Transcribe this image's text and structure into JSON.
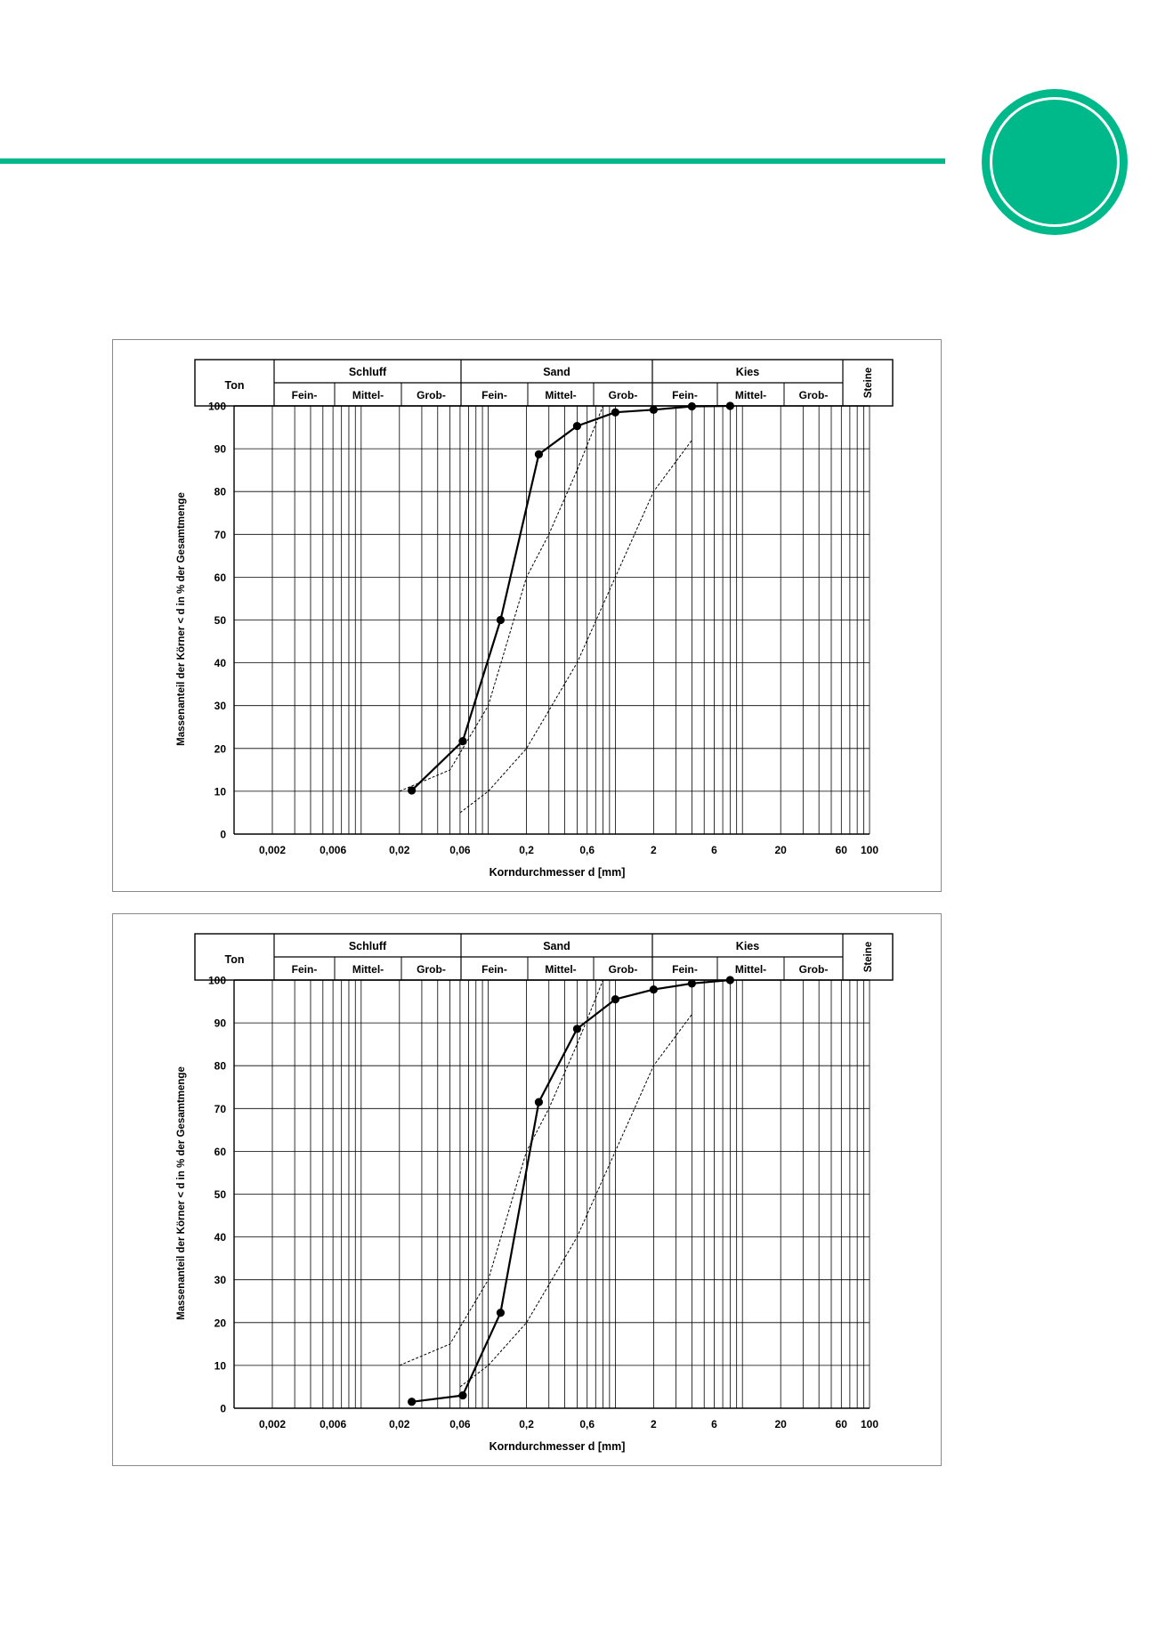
{
  "colors": {
    "accent": "#00b98a",
    "frame": "#8a8a8a",
    "ink": "#000000"
  },
  "header": {
    "badge_icon": "green-circle-badge"
  },
  "classification": {
    "groups": [
      "Ton",
      "Schluff",
      "Sand",
      "Kies",
      "Steine"
    ],
    "subgroups": [
      "Fein-",
      "Mittel-",
      "Grob-"
    ]
  },
  "axes": {
    "ylabel": "Massenanteil der Körner < d in % der Gesamtmenge",
    "xlabel": "Korndurchmesser d [mm]",
    "x_ticks": [
      {
        "v": 0.002,
        "t": "0,002"
      },
      {
        "v": 0.006,
        "t": "0,006"
      },
      {
        "v": 0.02,
        "t": "0,02"
      },
      {
        "v": 0.06,
        "t": "0,06"
      },
      {
        "v": 0.2,
        "t": "0,2"
      },
      {
        "v": 0.6,
        "t": "0,6"
      },
      {
        "v": 2,
        "t": "2"
      },
      {
        "v": 6,
        "t": "6"
      },
      {
        "v": 20,
        "t": "20"
      },
      {
        "v": 60,
        "t": "60"
      },
      {
        "v": 100,
        "t": "100"
      }
    ],
    "y_ticks": [
      "0",
      "10",
      "20",
      "30",
      "40",
      "50",
      "60",
      "70",
      "80",
      "90",
      "100"
    ]
  },
  "chart_data": [
    {
      "type": "line",
      "x_scale": "log",
      "xlim": [
        0.001,
        100
      ],
      "ylim": [
        0,
        100
      ],
      "grid": true,
      "xlabel": "Korndurchmesser d [mm]",
      "ylabel": "Massenanteil der Körner < d in % der Gesamtmenge",
      "series": [
        {
          "role": "measured",
          "style": "solid-with-markers",
          "x": [
            0.025,
            0.063,
            0.125,
            0.25,
            0.5,
            1,
            2,
            4,
            8
          ],
          "y": [
            10.2,
            21.7,
            50,
            88.7,
            95.3,
            98.5,
            99.1,
            99.9,
            100
          ]
        },
        {
          "role": "envelope-upper",
          "style": "dashed",
          "x": [
            0.02,
            0.05,
            0.1,
            0.2,
            0.3,
            0.5,
            0.8
          ],
          "y": [
            10,
            15,
            30,
            60,
            70,
            85,
            100
          ]
        },
        {
          "role": "envelope-lower",
          "style": "dashed",
          "x": [
            0.06,
            0.1,
            0.2,
            0.5,
            1,
            2,
            4
          ],
          "y": [
            5,
            10,
            20,
            40,
            60,
            80,
            92
          ]
        }
      ]
    },
    {
      "type": "line",
      "x_scale": "log",
      "xlim": [
        0.001,
        100
      ],
      "ylim": [
        0,
        100
      ],
      "grid": true,
      "xlabel": "Korndurchmesser d [mm]",
      "ylabel": "Massenanteil der Körner < d in % der Gesamtmenge",
      "series": [
        {
          "role": "measured",
          "style": "solid-with-markers",
          "x": [
            0.025,
            0.063,
            0.125,
            0.25,
            0.5,
            1,
            2,
            4,
            8
          ],
          "y": [
            1.5,
            3,
            22.3,
            71.5,
            88.6,
            95.5,
            97.8,
            99.2,
            100
          ]
        },
        {
          "role": "envelope-upper",
          "style": "dashed",
          "x": [
            0.02,
            0.05,
            0.1,
            0.2,
            0.3,
            0.5,
            0.8
          ],
          "y": [
            10,
            15,
            30,
            60,
            70,
            85,
            100
          ]
        },
        {
          "role": "envelope-lower",
          "style": "dashed",
          "x": [
            0.06,
            0.1,
            0.2,
            0.5,
            1,
            2,
            4
          ],
          "y": [
            5,
            10,
            20,
            40,
            60,
            80,
            92
          ]
        }
      ]
    }
  ]
}
